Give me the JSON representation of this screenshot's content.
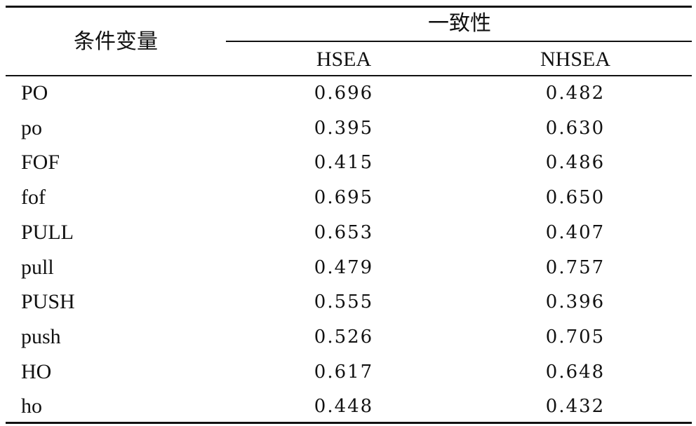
{
  "table": {
    "row_header": "条件变量",
    "group_header": "一致性",
    "columns": [
      "HSEA",
      "NHSEA"
    ],
    "rows": [
      [
        "PO",
        "0.696",
        "0.482"
      ],
      [
        "po",
        "0.395",
        "0.630"
      ],
      [
        "FOF",
        "0.415",
        "0.486"
      ],
      [
        "fof",
        "0.695",
        "0.650"
      ],
      [
        "PULL",
        "0.653",
        "0.407"
      ],
      [
        "pull",
        "0.479",
        "0.757"
      ],
      [
        "PUSH",
        "0.555",
        "0.396"
      ],
      [
        "push",
        "0.526",
        "0.705"
      ],
      [
        "HO",
        "0.617",
        "0.648"
      ],
      [
        "ho",
        "0.448",
        "0.432"
      ]
    ]
  }
}
